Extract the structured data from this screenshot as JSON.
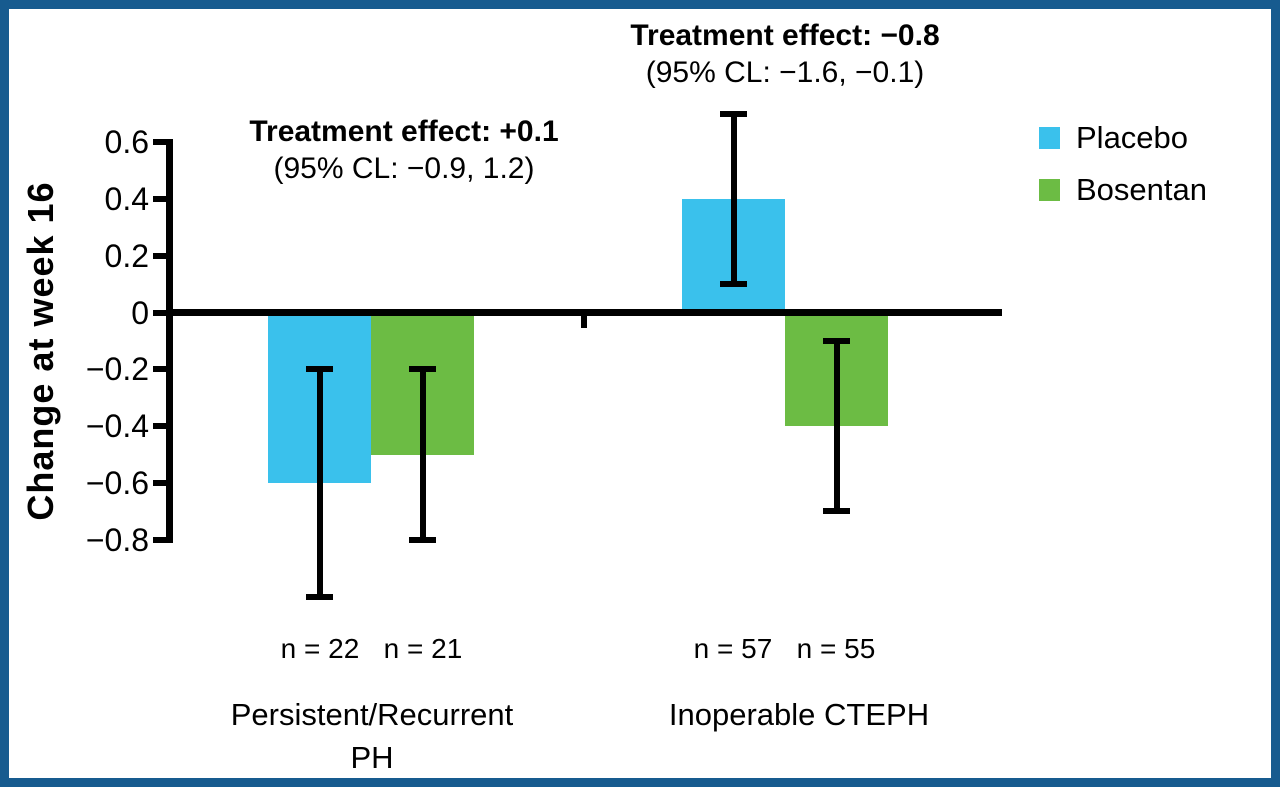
{
  "figure": {
    "border_color": "#175B8F",
    "background_color": "#FFFFFF"
  },
  "chart_data": {
    "type": "bar",
    "ylabel": "Change at week 16",
    "yticks": [
      0.6,
      0.4,
      0.2,
      0,
      -0.2,
      -0.4,
      -0.6,
      -0.8
    ],
    "ytick_labels": [
      "0.6",
      "0.4",
      "0.2",
      "0",
      "−0.2",
      "−0.4",
      "−0.6",
      "−0.8"
    ],
    "ylim": [
      -1.05,
      0.72
    ],
    "categories": [
      "Persistent/Recurrent PH",
      "Inoperable CTEPH"
    ],
    "category_labels": [
      [
        "Persistent/Recurrent",
        "PH"
      ],
      [
        "Inoperable CTEPH",
        ""
      ]
    ],
    "series": [
      {
        "name": "Placebo",
        "color": "#3AC1EC",
        "values": [
          -0.6,
          0.4
        ],
        "ci": [
          [
            -1.0,
            -0.2
          ],
          [
            0.1,
            0.7
          ]
        ],
        "n": [
          22,
          57
        ]
      },
      {
        "name": "Bosentan",
        "color": "#6CBC44",
        "values": [
          -0.5,
          -0.4
        ],
        "ci": [
          [
            -0.8,
            -0.2
          ],
          [
            -0.7,
            -0.1
          ]
        ],
        "n": [
          21,
          55
        ]
      }
    ],
    "n_labels": [
      "n = 22",
      "n = 21",
      "n = 57",
      "n = 55"
    ],
    "annotations": [
      {
        "line1": "Treatment effect: +0.1",
        "line2": "(95% CL: −0.9, 1.2)"
      },
      {
        "line1": "Treatment effect: −0.8",
        "line2": "(95% CL: −1.6, −0.1)"
      }
    ],
    "legend": {
      "position": "upper right"
    }
  }
}
